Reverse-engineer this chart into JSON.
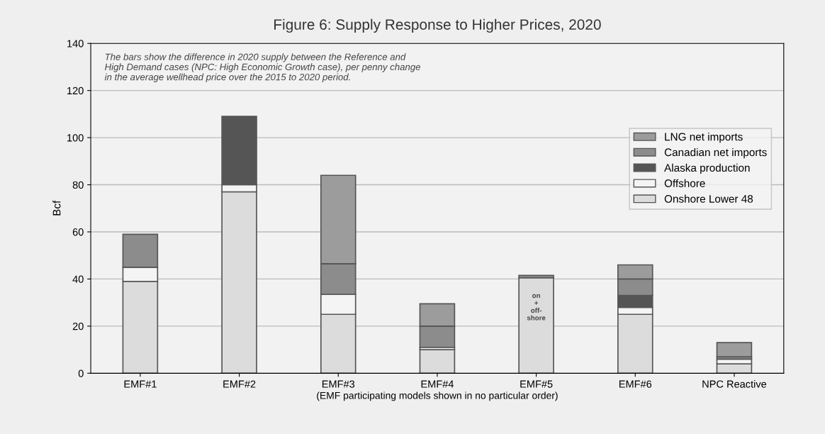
{
  "chart_data": {
    "type": "bar",
    "stacked": true,
    "title": "Figure 6: Supply Response to Higher Prices, 2020",
    "ylabel": "Bcf",
    "xlabel": "(EMF participating models shown in no particular order)",
    "categories": [
      "EMF#1",
      "EMF#2",
      "EMF#3",
      "EMF#4",
      "EMF#5",
      "EMF#6",
      "NPC Reactive"
    ],
    "series": [
      {
        "name": "Onshore Lower 48",
        "color": "#dcdcdc",
        "values": [
          39,
          77,
          25,
          10,
          40.5,
          25,
          4
        ]
      },
      {
        "name": "Offshore",
        "color": "#f4f4f4",
        "values": [
          6,
          3,
          8.5,
          1,
          null,
          3,
          2
        ]
      },
      {
        "name": "Alaska production",
        "color": "#555555",
        "values": [
          null,
          29,
          null,
          null,
          null,
          5,
          null
        ]
      },
      {
        "name": "Canadian net imports",
        "color": "#8c8c8c",
        "values": [
          14,
          null,
          13,
          9,
          1,
          7,
          1
        ]
      },
      {
        "name": "LNG net imports",
        "color": "#9c9c9c",
        "values": [
          null,
          null,
          37.5,
          9.5,
          null,
          6,
          6
        ]
      }
    ],
    "ylim": [
      0,
      140
    ],
    "yticks": [
      0,
      20,
      40,
      60,
      80,
      100,
      120,
      140
    ],
    "grid": "y",
    "legend": "right",
    "annotations": [
      "The bars show the difference in 2020 supply between the Reference and\nHigh Demand cases (NPC: High Economic Growth case), per penny change\nin the average wellhead price over the 2015 to 2020 period.",
      "on\n+\noff-\nshore"
    ]
  }
}
